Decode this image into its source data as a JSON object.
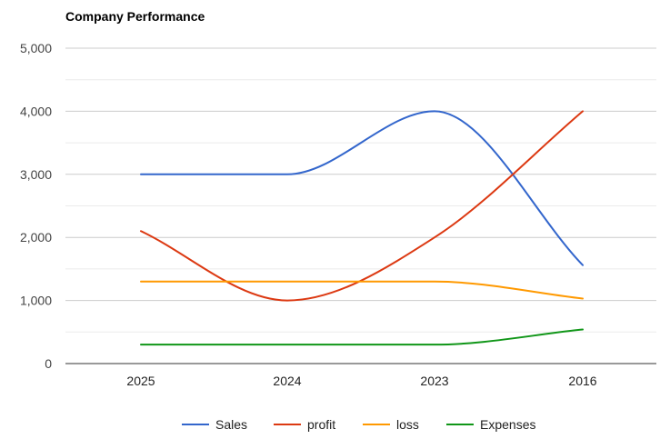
{
  "chart_data": {
    "type": "line",
    "title": "Company Performance",
    "categories": [
      "2025",
      "2024",
      "2023",
      "2016"
    ],
    "series": [
      {
        "name": "Sales",
        "values": [
          3000,
          3000,
          4000,
          1560
        ],
        "color": "#3366cc"
      },
      {
        "name": "profit",
        "values": [
          2100,
          1000,
          2000,
          4000
        ],
        "color": "#dc3912"
      },
      {
        "name": "loss",
        "values": [
          1300,
          1300,
          1300,
          1030
        ],
        "color": "#ff9900"
      },
      {
        "name": "Expenses",
        "values": [
          300,
          300,
          300,
          540
        ],
        "color": "#109618"
      }
    ],
    "ylim": [
      0,
      5000
    ],
    "y_ticks": [
      "0",
      "1,000",
      "2,000",
      "3,000",
      "4,000",
      "5,000"
    ],
    "y_tick_values": [
      0,
      1000,
      2000,
      3000,
      4000,
      5000
    ],
    "grid": true,
    "legend_position": "bottom",
    "curve": "smooth"
  }
}
